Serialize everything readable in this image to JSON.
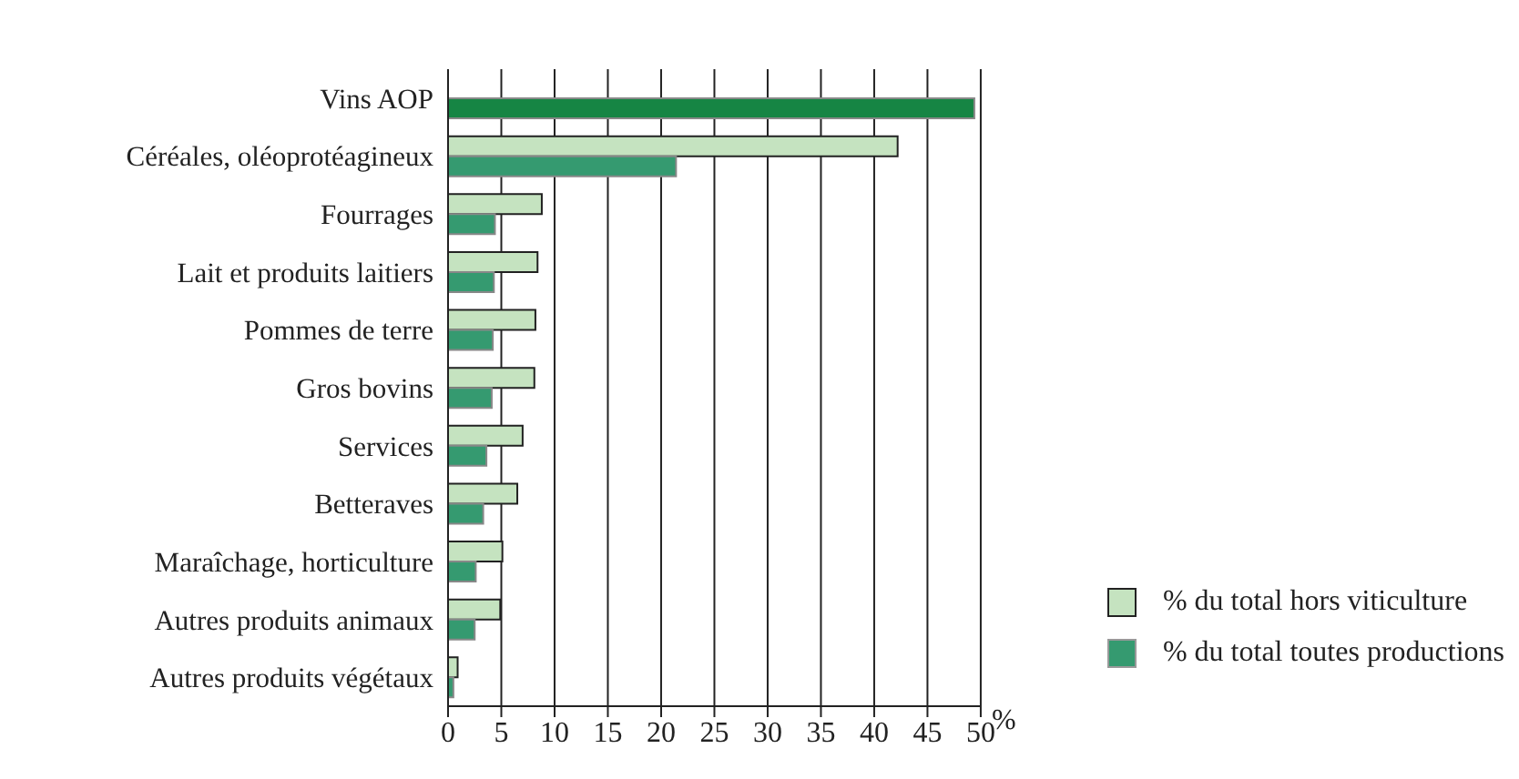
{
  "chart_data": {
    "type": "bar",
    "orientation": "horizontal",
    "categories": [
      "Vins AOP",
      "Céréales, oléoprotéagineux",
      "Fourrages",
      "Lait et produits laitiers",
      "Pommes de terre",
      "Gros bovins",
      "Services",
      "Betteraves",
      "Maraîchage, horticulture",
      "Autres produits animaux",
      "Autres produits végétaux"
    ],
    "series": [
      {
        "name": "% du total hors viticulture",
        "color": "#c5e3c0",
        "values": [
          null,
          42.2,
          8.8,
          8.4,
          8.2,
          8.1,
          7.0,
          6.5,
          5.1,
          4.9,
          0.9
        ]
      },
      {
        "name": "% du total toutes productions",
        "color": "#359a70",
        "colors": [
          "#168544",
          "#359a70",
          "#359a70",
          "#359a70",
          "#359a70",
          "#359a70",
          "#359a70",
          "#359a70",
          "#359a70",
          "#359a70",
          "#359a70"
        ],
        "values": [
          49.4,
          21.4,
          4.4,
          4.3,
          4.2,
          4.1,
          3.6,
          3.3,
          2.6,
          2.5,
          0.5
        ]
      }
    ],
    "xlabel": "%",
    "xlim": [
      0,
      50
    ],
    "xticks": [
      0,
      5,
      10,
      15,
      20,
      25,
      30,
      35,
      40,
      45,
      50
    ],
    "grid": "x",
    "legend": "bottom right"
  }
}
